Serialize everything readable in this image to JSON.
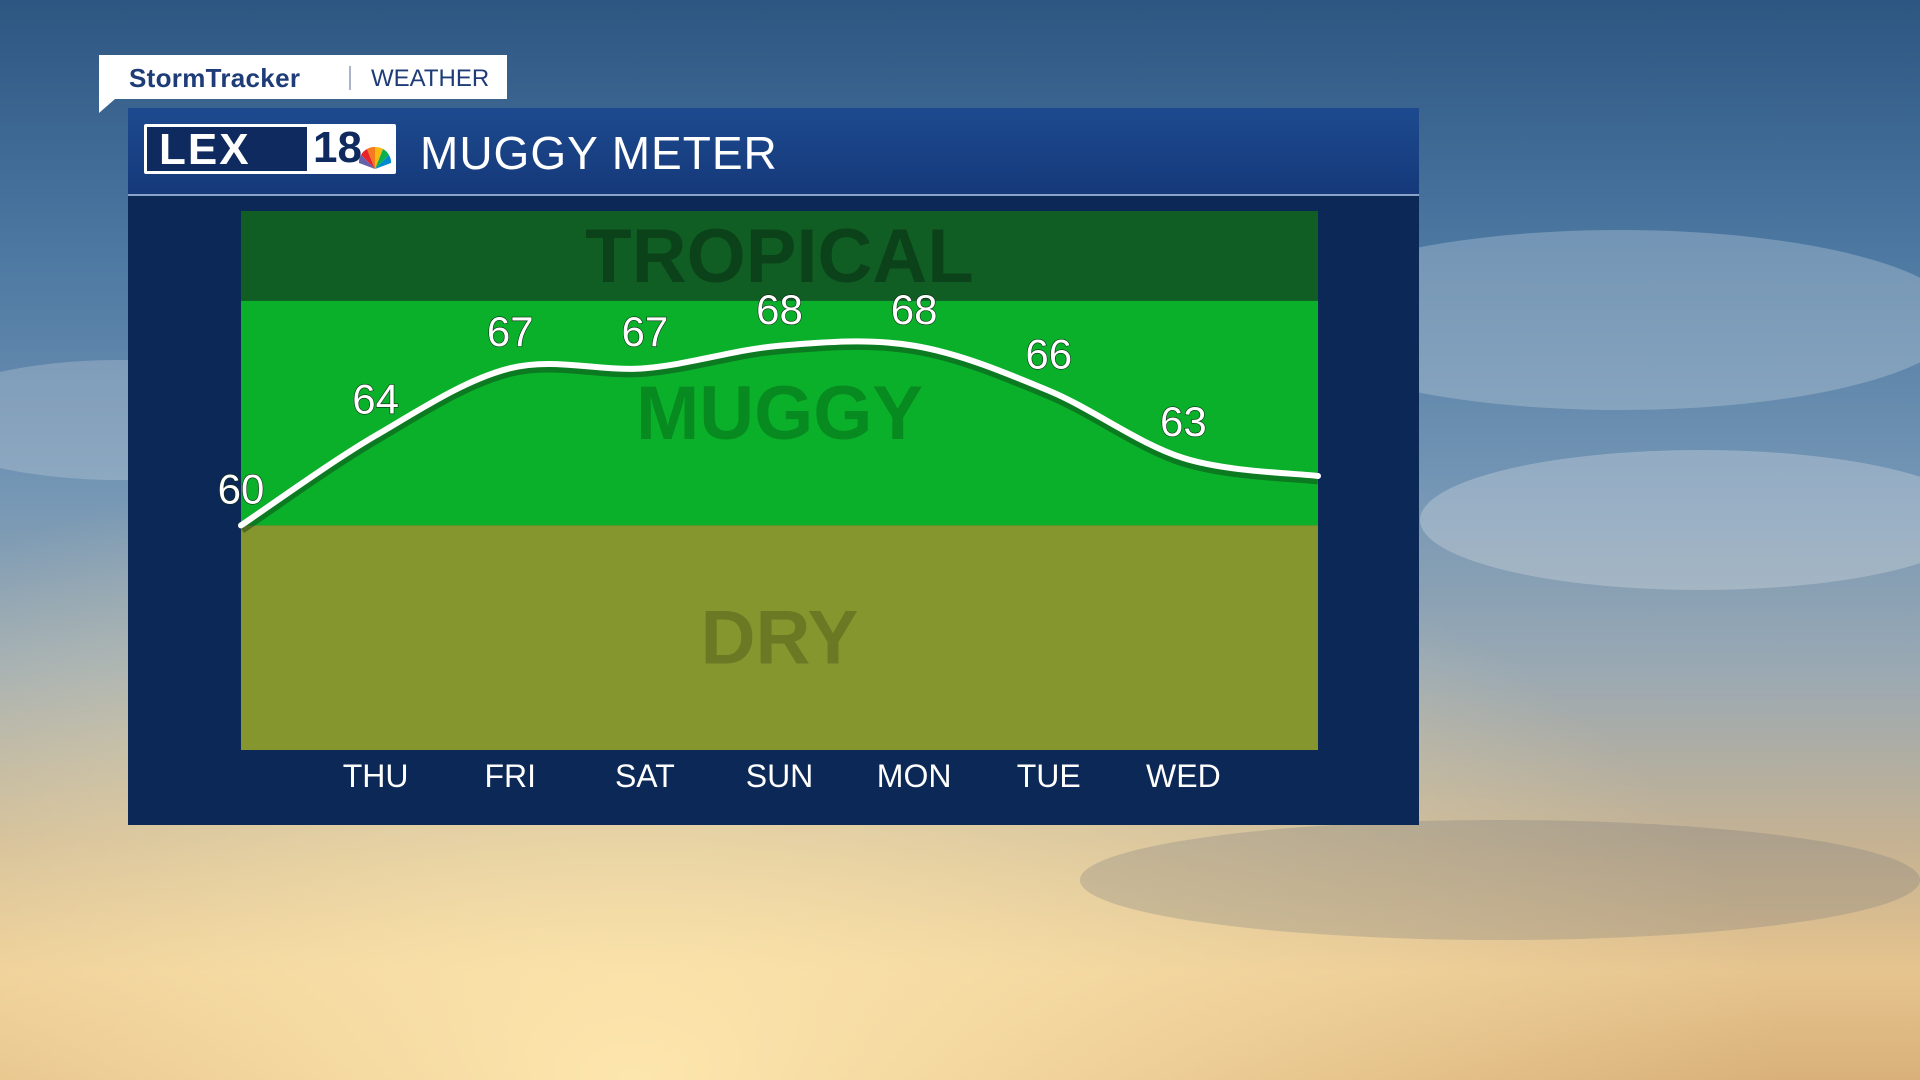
{
  "branding": {
    "name": "StormTracker",
    "section": "WEATHER",
    "logo_text": "LEX",
    "logo_number": "18"
  },
  "header": {
    "title": "MUGGY METER"
  },
  "colors": {
    "tropical": "#105e24",
    "muggy": "#0bb02a",
    "dry": "#86962e",
    "panel": "#0c2856",
    "line": "#ffffff"
  },
  "chart_data": {
    "type": "line",
    "title": "MUGGY METER",
    "categories": [
      "THU",
      "FRI",
      "SAT",
      "SUN",
      "MON",
      "TUE",
      "WED"
    ],
    "start_label": "60",
    "x": [
      "",
      "THU",
      "FRI",
      "SAT",
      "SUN",
      "MON",
      "TUE",
      "WED",
      ""
    ],
    "values": [
      60,
      64,
      67,
      67,
      68,
      68,
      66,
      63,
      62.2
    ],
    "labels": [
      "60",
      "64",
      "67",
      "67",
      "68",
      "68",
      "66",
      "63",
      ""
    ],
    "ylim": [
      50,
      74
    ],
    "bands": [
      {
        "name": "TROPICAL",
        "from": 70,
        "to": 74
      },
      {
        "name": "MUGGY",
        "from": 60,
        "to": 70
      },
      {
        "name": "DRY",
        "from": 50,
        "to": 60
      }
    ],
    "grid": false,
    "legend": "none"
  }
}
